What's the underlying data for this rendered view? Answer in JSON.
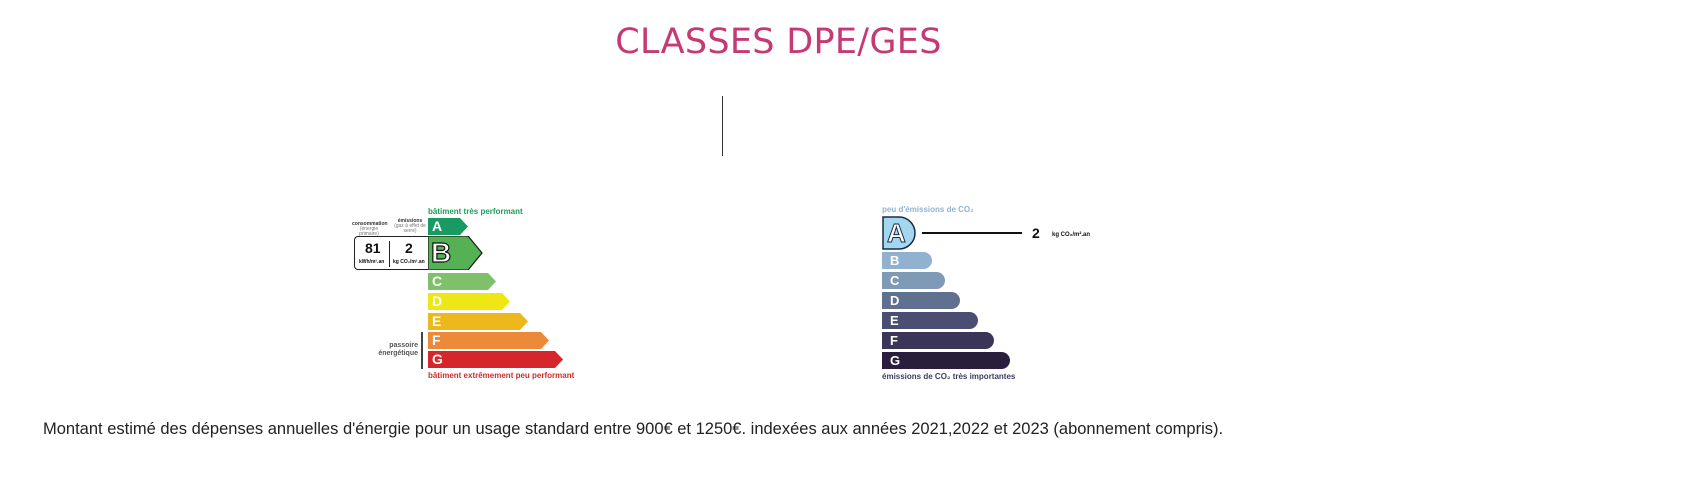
{
  "page": {
    "title": "CLASSES DPE/GES"
  },
  "dpe": {
    "top_caption": "bâtiment très performant",
    "bottom_caption": "bâtiment extrêmement peu performant",
    "header_consumption": "consommation",
    "header_consumption_sub": "(énergie primaire)",
    "header_emissions": "émissions",
    "header_emissions_sub": "(gaz à effet de serre)",
    "consumption_value": "81",
    "consumption_unit": "kWh/m².an",
    "emissions_value": "2",
    "emissions_unit": "kg CO₂/m².an",
    "passoire_label_1": "passoire",
    "passoire_label_2": "énergétique",
    "current_class": "B",
    "classes": [
      {
        "letter": "A",
        "color": "#1a9a63"
      },
      {
        "letter": "B",
        "color": "#54b154"
      },
      {
        "letter": "C",
        "color": "#7fc06b"
      },
      {
        "letter": "D",
        "color": "#efe616"
      },
      {
        "letter": "E",
        "color": "#edb71e"
      },
      {
        "letter": "F",
        "color": "#ec8a3a"
      },
      {
        "letter": "G",
        "color": "#d4262b"
      }
    ]
  },
  "ges": {
    "top_caption": "peu d'émissions de CO₂",
    "bottom_caption": "émissions de CO₂ très importantes",
    "value": "2",
    "unit": "kg CO₂/m².an",
    "current_class": "A",
    "classes": [
      {
        "letter": "A",
        "color": "#a3d6ef"
      },
      {
        "letter": "B",
        "color": "#90b2d0"
      },
      {
        "letter": "C",
        "color": "#7f9ab6"
      },
      {
        "letter": "D",
        "color": "#60708f"
      },
      {
        "letter": "E",
        "color": "#4b4d73"
      },
      {
        "letter": "F",
        "color": "#3b3658"
      },
      {
        "letter": "G",
        "color": "#2a1e3c"
      }
    ]
  },
  "footer": {
    "text": "Montant estimé des dépenses annuelles d'énergie pour un usage standard entre 900€ et 1250€. indexées aux années 2021,2022 et 2023 (abonnement compris)."
  }
}
